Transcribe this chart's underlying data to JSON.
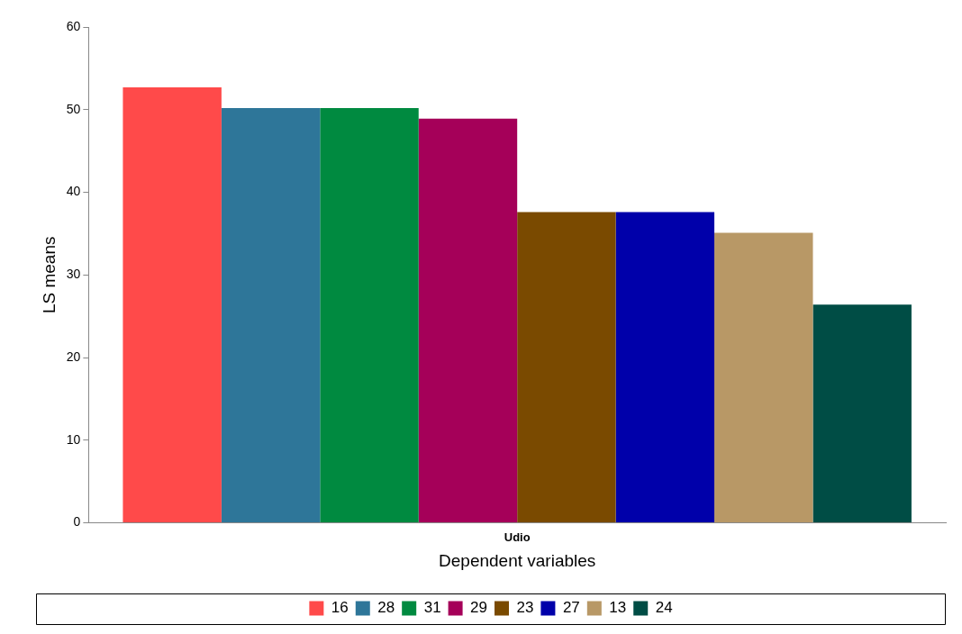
{
  "chart_data": {
    "type": "bar",
    "xlabel": "Dependent variables",
    "ylabel": "LS means",
    "categories": [
      "Udio"
    ],
    "series": [
      {
        "name": "16",
        "color": "#ff4a4a",
        "values": [
          52.7
        ]
      },
      {
        "name": "28",
        "color": "#2e7699",
        "values": [
          50.2
        ]
      },
      {
        "name": "31",
        "color": "#008a40",
        "values": [
          50.2
        ]
      },
      {
        "name": "29",
        "color": "#a50059",
        "values": [
          48.9
        ]
      },
      {
        "name": "23",
        "color": "#7a4a00",
        "values": [
          37.6
        ]
      },
      {
        "name": "27",
        "color": "#0000aa",
        "values": [
          37.6
        ]
      },
      {
        "name": "13",
        "color": "#b89866",
        "values": [
          35.1
        ]
      },
      {
        "name": "24",
        "color": "#004d45",
        "values": [
          26.4
        ]
      }
    ],
    "ylim": [
      0,
      60
    ],
    "yticks": [
      0,
      10,
      20,
      30,
      40,
      50,
      60
    ],
    "grid": false,
    "legend": "bottom"
  }
}
